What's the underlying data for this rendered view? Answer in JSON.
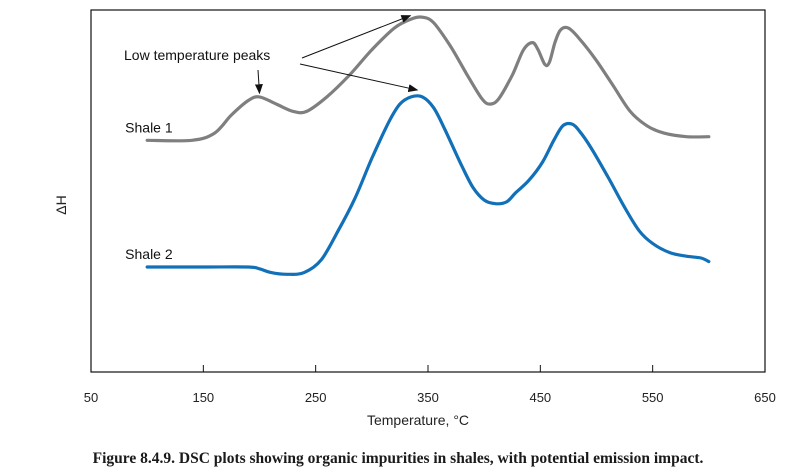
{
  "caption": "Figure 8.4.9. DSC plots showing organic impurities in shales, with potential emission impact.",
  "chart_data": {
    "type": "line",
    "title": "",
    "xlabel": "Temperature, °C",
    "ylabel": "ΔH",
    "xlim": [
      50,
      650
    ],
    "x_ticks": [
      50,
      150,
      250,
      350,
      450,
      550,
      650
    ],
    "x_tick_labels": [
      "50",
      "150",
      "250",
      "350",
      "450",
      "550",
      "650"
    ],
    "y_ticks_shown": false,
    "ylim": [
      0,
      10
    ],
    "grid": false,
    "legend": "none",
    "series": [
      {
        "name": "Shale 1",
        "color": "#7f7f7f",
        "points": [
          [
            100,
            6.4
          ],
          [
            140,
            6.4
          ],
          [
            160,
            6.6
          ],
          [
            175,
            7.1
          ],
          [
            190,
            7.5
          ],
          [
            200,
            7.6
          ],
          [
            215,
            7.4
          ],
          [
            230,
            7.2
          ],
          [
            242,
            7.2
          ],
          [
            260,
            7.6
          ],
          [
            280,
            8.2
          ],
          [
            300,
            8.9
          ],
          [
            320,
            9.5
          ],
          [
            335,
            9.75
          ],
          [
            345,
            9.8
          ],
          [
            355,
            9.65
          ],
          [
            370,
            9.0
          ],
          [
            385,
            8.2
          ],
          [
            398,
            7.55
          ],
          [
            405,
            7.4
          ],
          [
            413,
            7.55
          ],
          [
            425,
            8.2
          ],
          [
            435,
            8.9
          ],
          [
            443,
            9.1
          ],
          [
            448,
            8.9
          ],
          [
            454,
            8.5
          ],
          [
            458,
            8.55
          ],
          [
            463,
            9.1
          ],
          [
            468,
            9.45
          ],
          [
            475,
            9.5
          ],
          [
            485,
            9.2
          ],
          [
            500,
            8.6
          ],
          [
            515,
            7.9
          ],
          [
            530,
            7.2
          ],
          [
            545,
            6.8
          ],
          [
            560,
            6.6
          ],
          [
            580,
            6.5
          ],
          [
            600,
            6.5
          ]
        ]
      },
      {
        "name": "Shale 2",
        "color": "#1170b8",
        "points": [
          [
            100,
            2.9
          ],
          [
            150,
            2.9
          ],
          [
            190,
            2.9
          ],
          [
            200,
            2.85
          ],
          [
            210,
            2.75
          ],
          [
            225,
            2.7
          ],
          [
            240,
            2.75
          ],
          [
            255,
            3.1
          ],
          [
            270,
            3.9
          ],
          [
            285,
            4.8
          ],
          [
            300,
            5.9
          ],
          [
            315,
            6.9
          ],
          [
            325,
            7.4
          ],
          [
            335,
            7.6
          ],
          [
            345,
            7.6
          ],
          [
            355,
            7.3
          ],
          [
            365,
            6.7
          ],
          [
            380,
            5.7
          ],
          [
            390,
            5.1
          ],
          [
            400,
            4.75
          ],
          [
            410,
            4.65
          ],
          [
            420,
            4.7
          ],
          [
            428,
            4.95
          ],
          [
            440,
            5.3
          ],
          [
            452,
            5.8
          ],
          [
            462,
            6.4
          ],
          [
            470,
            6.8
          ],
          [
            478,
            6.85
          ],
          [
            485,
            6.65
          ],
          [
            495,
            6.2
          ],
          [
            510,
            5.4
          ],
          [
            525,
            4.55
          ],
          [
            538,
            3.9
          ],
          [
            550,
            3.55
          ],
          [
            565,
            3.3
          ],
          [
            580,
            3.2
          ],
          [
            593,
            3.15
          ],
          [
            600,
            3.05
          ]
        ]
      }
    ],
    "annotations": [
      {
        "text": "Low temperature peaks",
        "arrow_targets": [
          [
            200,
            7.7
          ],
          [
            345,
            9.9
          ],
          [
            345,
            7.65
          ]
        ]
      }
    ]
  }
}
